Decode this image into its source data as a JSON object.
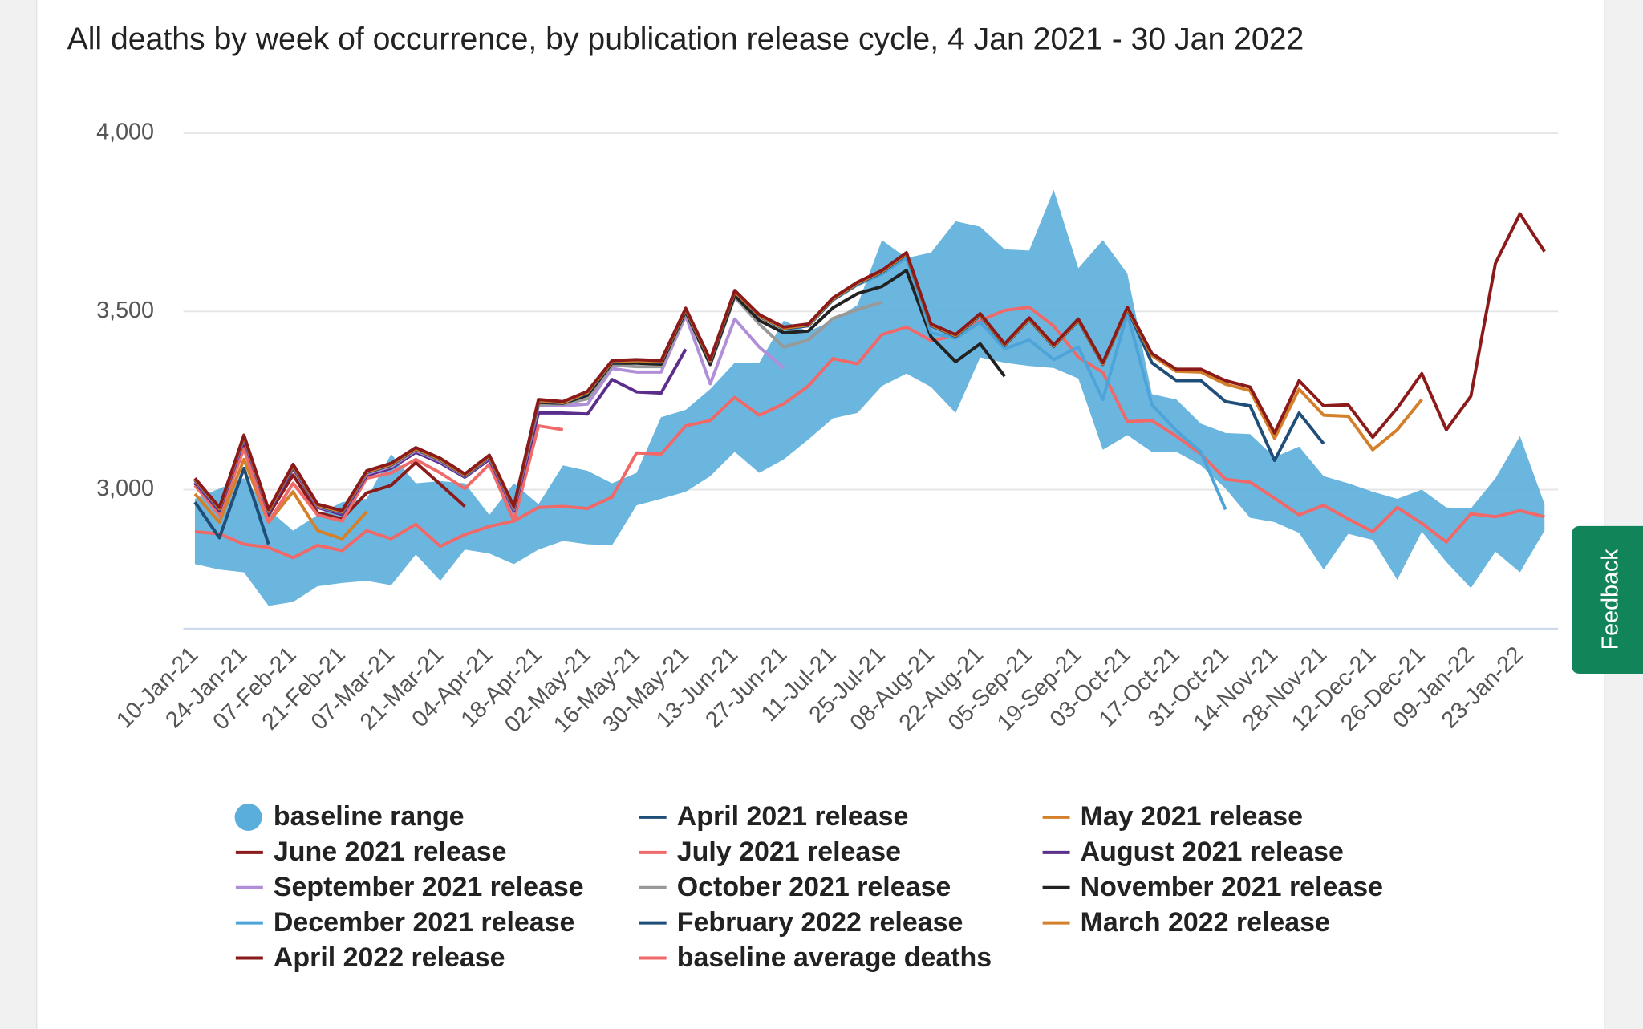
{
  "feedback": "Feedback",
  "chart_data": {
    "type": "line",
    "title": "All deaths by week of occurrence, by publication release cycle, 4 Jan 2021 - 30 Jan 2022",
    "categories": [
      "10-Jan-21",
      null,
      "24-Jan-21",
      null,
      "07-Feb-21",
      null,
      "21-Feb-21",
      null,
      "07-Mar-21",
      null,
      "21-Mar-21",
      null,
      "04-Apr-21",
      null,
      "18-Apr-21",
      null,
      "02-May-21",
      null,
      "16-May-21",
      null,
      "30-May-21",
      null,
      "13-Jun-21",
      null,
      "27-Jun-21",
      null,
      "11-Jul-21",
      null,
      "25-Jul-21",
      null,
      "08-Aug-21",
      null,
      "22-Aug-21",
      null,
      "05-Sep-21",
      null,
      "19-Sep-21",
      null,
      "03-Oct-21",
      null,
      "17-Oct-21",
      null,
      "31-Oct-21",
      null,
      "14-Nov-21",
      null,
      "28-Nov-21",
      null,
      "12-Dec-21",
      null,
      "26-Dec-21",
      null,
      "09-Jan-22",
      null,
      "23-Jan-22",
      null
    ],
    "ylim": [
      2610,
      4000
    ],
    "yticks": [
      {
        "value": 3000,
        "label": "3,000"
      },
      {
        "value": 3500,
        "label": "3,500"
      },
      {
        "value": 4000,
        "label": "4,000"
      }
    ],
    "grid": true,
    "legend": "bottom",
    "series": [
      {
        "name": "baseline range",
        "color": "#5aaedc",
        "upper": [
          2974,
          3003,
          3032,
          2944,
          2885,
          2929,
          2965,
          2974,
          3100,
          3018,
          3024,
          3018,
          2929,
          3018,
          2959,
          3068,
          3053,
          3018,
          3047,
          3203,
          3224,
          3282,
          3356,
          3356,
          3474,
          3444,
          3474,
          3518,
          3700,
          3650,
          3665,
          3753,
          3738,
          3674,
          3671,
          3841,
          3621,
          3700,
          3606,
          3268,
          3253,
          3185,
          3159,
          3156,
          3091,
          3121,
          3038,
          3018,
          2994,
          2974,
          3000,
          2950,
          2947,
          3032,
          3150,
          2959
        ],
        "lower": [
          2791,
          2776,
          2768,
          2674,
          2685,
          2729,
          2738,
          2744,
          2732,
          2818,
          2744,
          2832,
          2821,
          2791,
          2832,
          2856,
          2847,
          2844,
          2956,
          2974,
          2994,
          3038,
          3106,
          3047,
          3085,
          3141,
          3200,
          3215,
          3291,
          3326,
          3288,
          3215,
          3371,
          3356,
          3347,
          3341,
          3312,
          3112,
          3153,
          3106,
          3106,
          3068,
          3003,
          2921,
          2909,
          2879,
          2776,
          2876,
          2859,
          2747,
          2882,
          2797,
          2724,
          2826,
          2768,
          2885
        ]
      },
      {
        "name": "April 2021 release",
        "color": "#1f4e79",
        "values": [
          2965,
          2865,
          3060,
          2847,
          null,
          null,
          null,
          null,
          null,
          null,
          null,
          null,
          null,
          null,
          null,
          null,
          null,
          null,
          null,
          null,
          null,
          null,
          null,
          null,
          null,
          null,
          null,
          null,
          null,
          null,
          null,
          null,
          null,
          null,
          null,
          null,
          null,
          null,
          null,
          null,
          null,
          null,
          null,
          null,
          null,
          null,
          null,
          null,
          null,
          null,
          null,
          null,
          null,
          null,
          null,
          null
        ]
      },
      {
        "name": "May 2021 release",
        "color": "#d4802a",
        "values": [
          2988,
          2909,
          3085,
          2909,
          2994,
          2885,
          2862,
          2938,
          null,
          null,
          null,
          null,
          null,
          null,
          null,
          null,
          null,
          null,
          null,
          null,
          null,
          null,
          null,
          null,
          null,
          null,
          null,
          null,
          null,
          null,
          null,
          null,
          null,
          null,
          null,
          null,
          null,
          null,
          null,
          null,
          null,
          null,
          null,
          null,
          null,
          null,
          null,
          null,
          null,
          null,
          null,
          null,
          null,
          null,
          null,
          null
        ]
      },
      {
        "name": "June 2021 release",
        "color": "#8b1a1a",
        "values": [
          3018,
          2935,
          3121,
          2929,
          3041,
          2935,
          2918,
          2991,
          3012,
          3076,
          3015,
          2953,
          null,
          null,
          null,
          null,
          null,
          null,
          null,
          null,
          null,
          null,
          null,
          null,
          null,
          null,
          null,
          null,
          null,
          null,
          null,
          null,
          null,
          null,
          null,
          null,
          null,
          null,
          null,
          null,
          null,
          null,
          null,
          null,
          null,
          null,
          null,
          null,
          null,
          null,
          null,
          null,
          null,
          null,
          null,
          null
        ]
      },
      {
        "name": "July 2021 release",
        "color": "#ef6b6b",
        "values": [
          3012,
          2929,
          3115,
          2909,
          3018,
          2929,
          2912,
          3032,
          3047,
          3085,
          3047,
          3003,
          3071,
          2912,
          3179,
          3168,
          null,
          null,
          null,
          null,
          null,
          null,
          null,
          null,
          null,
          null,
          null,
          null,
          null,
          null,
          null,
          null,
          null,
          null,
          null,
          null,
          null,
          null,
          null,
          null,
          null,
          null,
          null,
          null,
          null,
          null,
          null,
          null,
          null,
          null,
          null,
          null,
          null,
          null,
          null,
          null
        ]
      },
      {
        "name": "August 2021 release",
        "color": "#5b2e8c",
        "values": [
          3020,
          2940,
          3140,
          2935,
          3060,
          2950,
          2930,
          3040,
          3060,
          3105,
          3075,
          3035,
          3085,
          2940,
          3215,
          3215,
          3212,
          3309,
          3274,
          3271,
          3394,
          null,
          null,
          null,
          null,
          null,
          null,
          null,
          null,
          null,
          null,
          null,
          null,
          null,
          null,
          null,
          null,
          null,
          null,
          null,
          null,
          null,
          null,
          null,
          null,
          null,
          null,
          null,
          null,
          null,
          null,
          null,
          null,
          null,
          null,
          null
        ]
      },
      {
        "name": "September 2021 release",
        "color": "#b08fd8",
        "values": [
          3025,
          2945,
          3145,
          2938,
          3065,
          2952,
          2935,
          3045,
          3065,
          3110,
          3080,
          3038,
          3090,
          2945,
          3235,
          3235,
          3240,
          3340,
          3330,
          3330,
          3488,
          3297,
          3479,
          3400,
          3341,
          null,
          null,
          null,
          null,
          null,
          null,
          null,
          null,
          null,
          null,
          null,
          null,
          null,
          null,
          null,
          null,
          null,
          null,
          null,
          null,
          null,
          null,
          null,
          null,
          null,
          null,
          null,
          null,
          null,
          null,
          null
        ]
      },
      {
        "name": "October 2021 release",
        "color": "#999999",
        "values": [
          3028,
          2948,
          3148,
          2940,
          3067,
          2955,
          2938,
          3048,
          3068,
          3112,
          3083,
          3040,
          3092,
          2948,
          3240,
          3240,
          3255,
          3350,
          3345,
          3345,
          3495,
          3350,
          3540,
          3465,
          3400,
          3420,
          3480,
          3505,
          3526,
          null,
          null,
          null,
          null,
          null,
          null,
          null,
          null,
          null,
          null,
          null,
          null,
          null,
          null,
          null,
          null,
          null,
          null,
          null,
          null,
          null,
          null,
          null,
          null,
          null,
          null,
          null
        ]
      },
      {
        "name": "November 2021 release",
        "color": "#222222",
        "values": [
          3030,
          2948,
          3150,
          2942,
          3068,
          2956,
          2939,
          3050,
          3070,
          3114,
          3085,
          3042,
          3094,
          2950,
          3245,
          3242,
          3265,
          3355,
          3355,
          3352,
          3500,
          3352,
          3545,
          3475,
          3440,
          3445,
          3510,
          3550,
          3570,
          3615,
          3429,
          3359,
          3409,
          3318,
          null,
          null,
          null,
          null,
          null,
          null,
          null,
          null,
          null,
          null,
          null,
          null,
          null,
          null,
          null,
          null,
          null,
          null,
          null,
          null,
          null,
          null
        ]
      },
      {
        "name": "December 2021 release",
        "color": "#4ea3d8",
        "values": [
          3029,
          2947,
          3150,
          2941,
          3068,
          2956,
          2938,
          3050,
          3071,
          3115,
          3085,
          3041,
          3094,
          2950,
          3250,
          3244,
          3272,
          3358,
          3361,
          3358,
          3505,
          3360,
          3555,
          3487,
          3452,
          3460,
          3532,
          3575,
          3605,
          3650,
          3440,
          3425,
          3470,
          3395,
          3420,
          3365,
          3400,
          3253,
          3494,
          3238,
          3165,
          3106,
          2944,
          null,
          null,
          null,
          null,
          null,
          null,
          null,
          null,
          null,
          null,
          null,
          null,
          null
        ]
      },
      {
        "name": "February 2022 release",
        "color": "#1f4e79",
        "values": [
          3027,
          2945,
          3148,
          2939,
          3066,
          2954,
          2936,
          3048,
          3069,
          3113,
          3083,
          3039,
          3092,
          2948,
          3248,
          3242,
          3271,
          3357,
          3360,
          3357,
          3504,
          3360,
          3554,
          3486,
          3451,
          3460,
          3533,
          3577,
          3610,
          3660,
          3460,
          3430,
          3489,
          3404,
          3477,
          3401,
          3474,
          3351,
          3507,
          3356,
          3306,
          3306,
          3247,
          3235,
          3082,
          3215,
          3129,
          null,
          null,
          null,
          null,
          null,
          null,
          null,
          null,
          null
        ]
      },
      {
        "name": "March 2022 release",
        "color": "#d4802a",
        "values": [
          3029,
          2947,
          3150,
          2941,
          3068,
          2956,
          2938,
          3050,
          3071,
          3115,
          3085,
          3041,
          3094,
          2950,
          3250,
          3244,
          3273,
          3359,
          3362,
          3359,
          3506,
          3362,
          3556,
          3488,
          3453,
          3462,
          3535,
          3579,
          3612,
          3662,
          3462,
          3432,
          3491,
          3406,
          3479,
          3403,
          3476,
          3353,
          3509,
          3376,
          3332,
          3330,
          3296,
          3278,
          3144,
          3282,
          3209,
          3206,
          3112,
          3168,
          3253,
          null,
          null,
          null,
          null,
          null
        ]
      },
      {
        "name": "April 2022 release",
        "color": "#8b1a1a",
        "values": [
          3032,
          2950,
          3153,
          2944,
          3071,
          2959,
          2941,
          3053,
          3074,
          3118,
          3088,
          3044,
          3097,
          2953,
          3253,
          3247,
          3276,
          3362,
          3365,
          3362,
          3509,
          3365,
          3559,
          3491,
          3456,
          3465,
          3538,
          3582,
          3615,
          3665,
          3465,
          3435,
          3494,
          3409,
          3482,
          3406,
          3479,
          3356,
          3512,
          3382,
          3338,
          3338,
          3306,
          3288,
          3159,
          3306,
          3235,
          3238,
          3147,
          3229,
          3326,
          3168,
          3262,
          3635,
          3774,
          3668
        ]
      },
      {
        "name": "baseline average deaths",
        "color": "#f06868",
        "values": [
          2882,
          2876,
          2847,
          2838,
          2809,
          2844,
          2829,
          2885,
          2862,
          2903,
          2841,
          2874,
          2897,
          2912,
          2950,
          2953,
          2947,
          2979,
          3103,
          3100,
          3179,
          3194,
          3259,
          3209,
          3241,
          3291,
          3368,
          3353,
          3435,
          3456,
          3418,
          3432,
          3474,
          3503,
          3512,
          3459,
          3371,
          3329,
          3191,
          3194,
          3150,
          3100,
          3029,
          3021,
          2976,
          2929,
          2956,
          2918,
          2882,
          2950,
          2906,
          2853,
          2932,
          2924,
          2941,
          2924
        ]
      }
    ]
  }
}
